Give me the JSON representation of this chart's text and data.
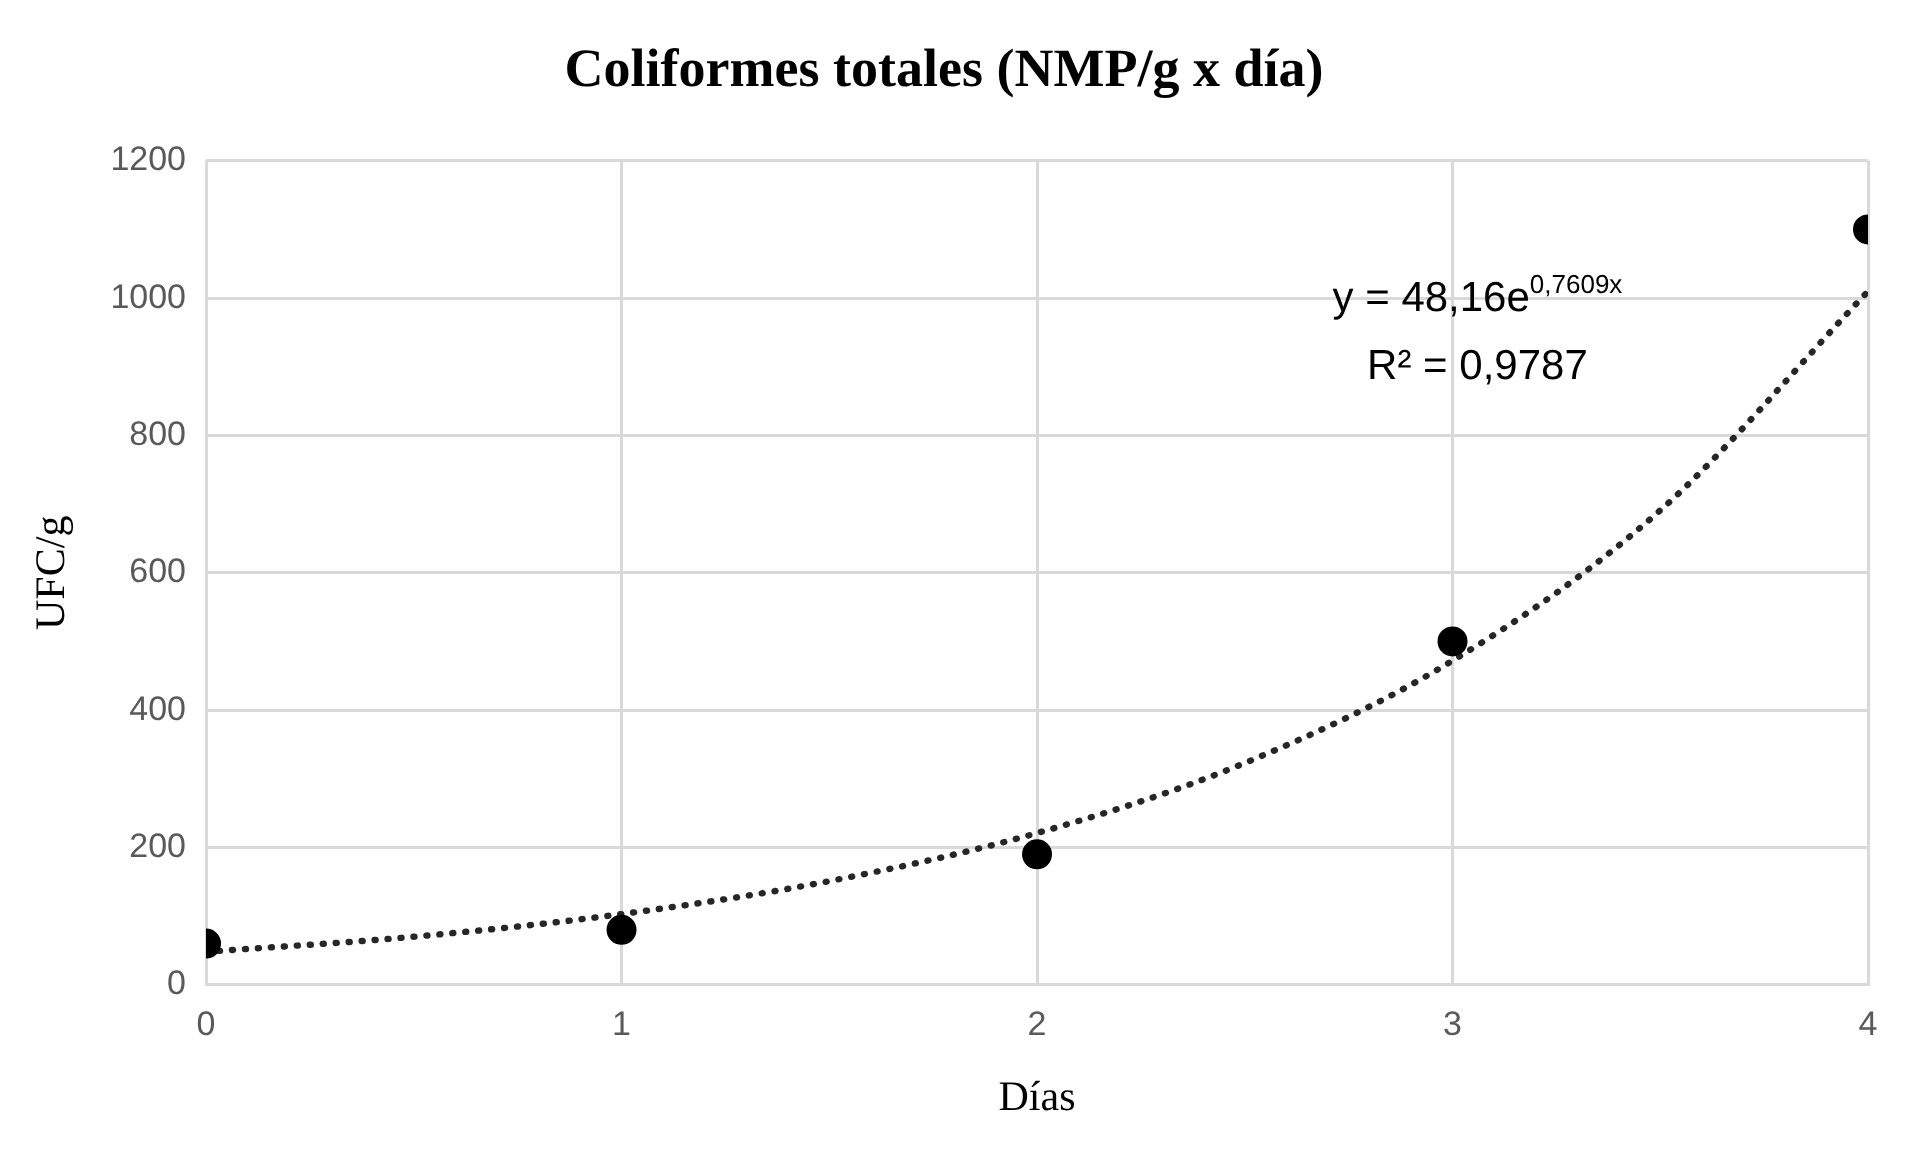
{
  "chart_data": {
    "type": "scatter",
    "title": "Coliformes totales (NMP/g x día)",
    "xlabel": "Días",
    "ylabel": "UFC/g",
    "xlim": [
      0,
      4
    ],
    "xticks": [
      0,
      1,
      2,
      3,
      4
    ],
    "ylim": [
      0,
      1200
    ],
    "yticks": [
      0,
      200,
      400,
      600,
      800,
      1000,
      1200
    ],
    "grid": true,
    "legend": false,
    "annotations": [
      "y = 48,16e$^{0,7609x}$",
      "R² = 0,9787"
    ],
    "series": [
      {
        "type": "scatter",
        "color": "#000000",
        "marker": "circle",
        "x": [
          0,
          1,
          2,
          3,
          4
        ],
        "values": [
          60,
          80,
          190,
          500,
          1100
        ]
      },
      {
        "type": "line",
        "color": "#262626",
        "marker": "none",
        "line_style": "dotted",
        "x": [
          0,
          0.5,
          1,
          1.5,
          2,
          2.5,
          3,
          3.5,
          4
        ],
        "values": [
          48,
          70,
          103,
          151,
          221,
          323,
          472,
          691,
          1010
        ]
      }
    ]
  }
}
